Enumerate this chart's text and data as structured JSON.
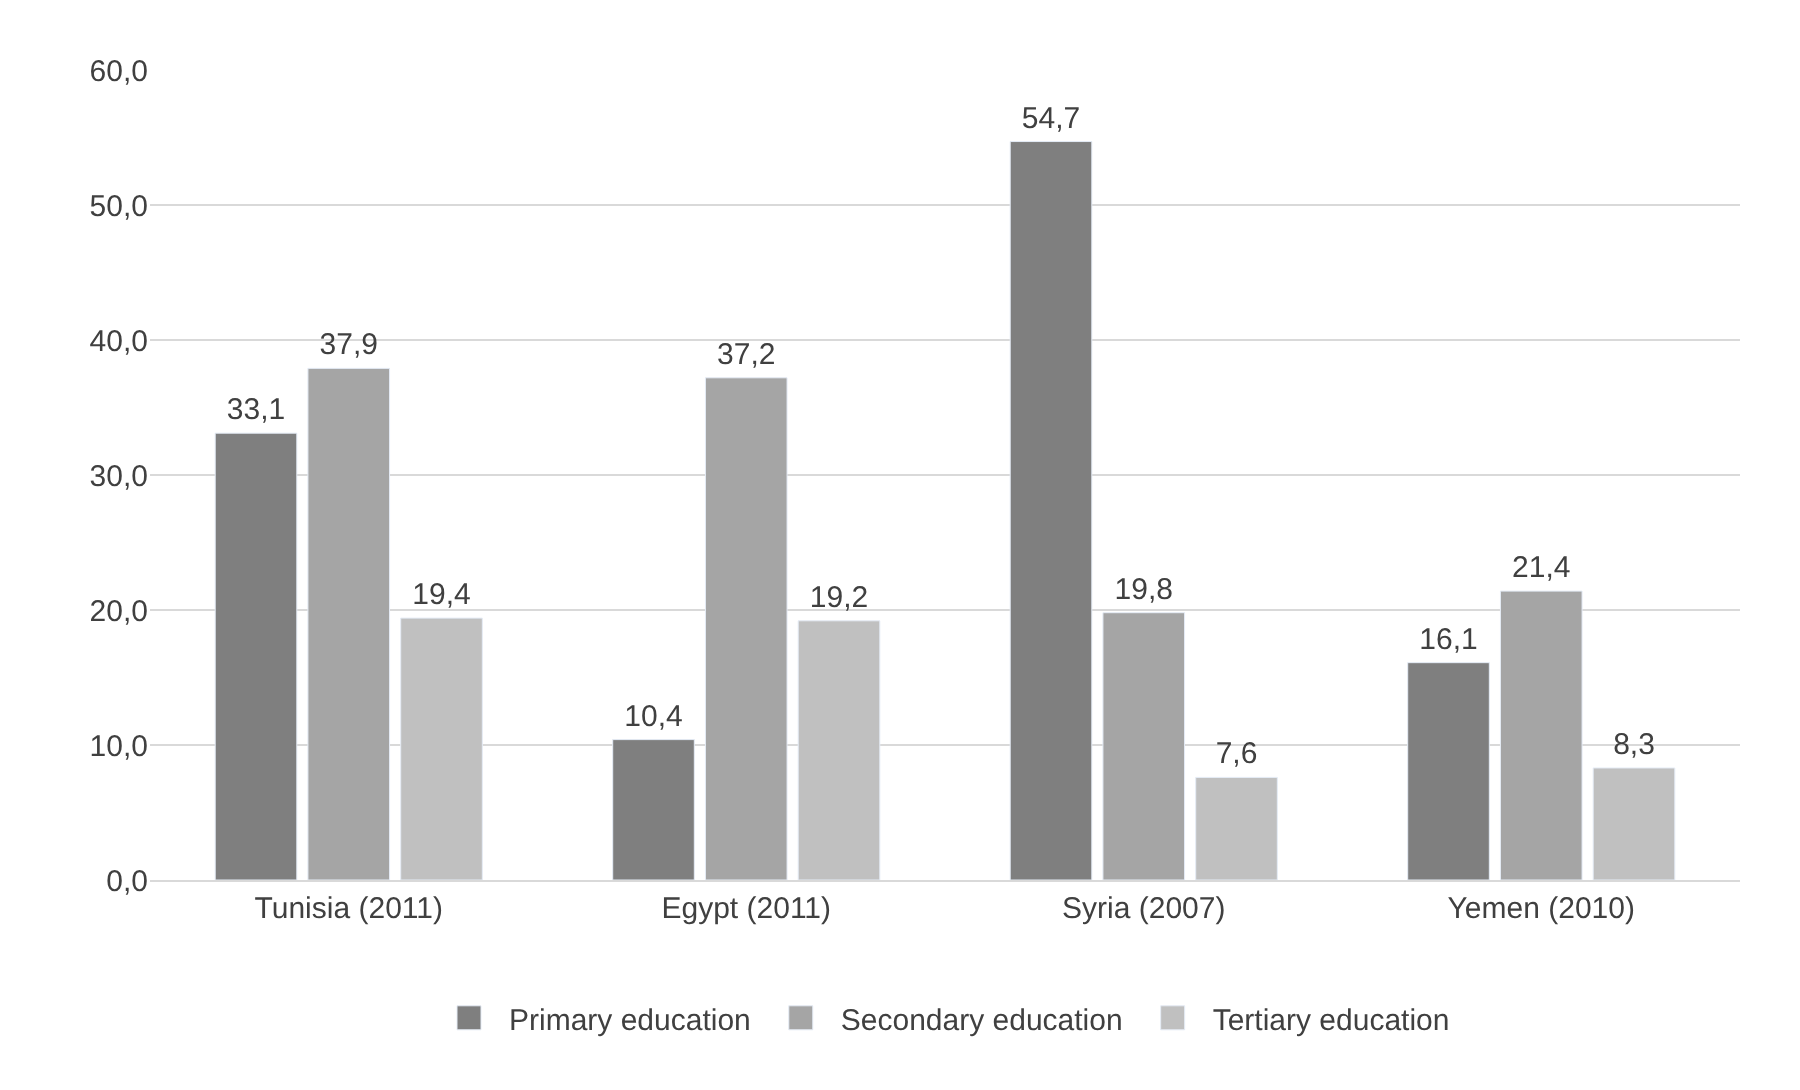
{
  "chart_data": {
    "type": "bar",
    "categories": [
      "Tunisia (2011)",
      "Egypt (2011)",
      "Syria (2007)",
      "Yemen (2010)"
    ],
    "series": [
      {
        "name": "Primary education",
        "color": "#7f7f7f",
        "values": [
          33.1,
          10.4,
          54.7,
          16.1
        ],
        "value_labels": [
          "33,1",
          "10,4",
          "54,7",
          "16,1"
        ]
      },
      {
        "name": "Secondary education",
        "color": "#a5a5a5",
        "values": [
          37.9,
          37.2,
          19.8,
          21.4
        ],
        "value_labels": [
          "37,9",
          "37,2",
          "19,8",
          "21,4"
        ]
      },
      {
        "name": "Tertiary education",
        "color": "#c0c0c0",
        "values": [
          19.4,
          19.2,
          7.6,
          8.3
        ],
        "value_labels": [
          "19,4",
          "19,2",
          "7,6",
          "8,3"
        ]
      }
    ],
    "ylim": [
      0,
      60
    ],
    "yticks": [
      {
        "value": 0,
        "label": "0,0"
      },
      {
        "value": 10,
        "label": "10,0"
      },
      {
        "value": 20,
        "label": "20,0"
      },
      {
        "value": 30,
        "label": "30,0"
      },
      {
        "value": 40,
        "label": "40,0"
      },
      {
        "value": 50,
        "label": "50,0"
      },
      {
        "value": 60,
        "label": "60,0"
      }
    ],
    "grid": "y",
    "legend": "bottom"
  }
}
